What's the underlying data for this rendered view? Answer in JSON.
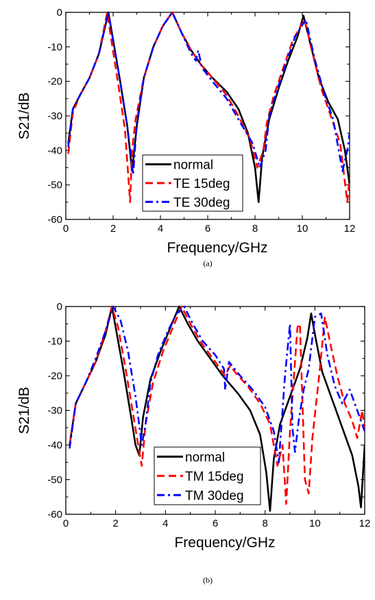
{
  "chart_data": [
    {
      "type": "line",
      "caption": "(a)",
      "xlabel": "Frequency/GHz",
      "ylabel": "S21/dB",
      "xlim": [
        0,
        12
      ],
      "ylim": [
        -60,
        0
      ],
      "xticks": [
        0,
        2,
        4,
        6,
        8,
        10,
        12
      ],
      "yticks": [
        0,
        -10,
        -20,
        -30,
        -40,
        -50,
        -60
      ],
      "grid": false,
      "legend_position": "bottom-center",
      "series": [
        {
          "name": "normal",
          "color": "#000000",
          "style": "solid",
          "x": [
            0.1,
            0.3,
            0.6,
            1.0,
            1.4,
            1.8,
            2.0,
            2.3,
            2.6,
            2.8,
            3.0,
            3.3,
            3.7,
            4.1,
            4.5,
            4.9,
            5.3,
            5.7,
            6.2,
            6.8,
            7.3,
            7.7,
            8.0,
            8.15,
            8.3,
            8.6,
            9.0,
            9.4,
            9.8,
            10.05,
            10.3,
            10.7,
            11.1,
            11.5,
            11.8,
            12.0
          ],
          "y": [
            -38,
            -28,
            -24,
            -19,
            -12,
            0,
            -8,
            -20,
            -33,
            -46,
            -33,
            -19,
            -10,
            -4,
            0,
            -6,
            -11,
            -15,
            -19,
            -23,
            -28,
            -35,
            -45,
            -55,
            -42,
            -31,
            -22,
            -14,
            -7,
            -1,
            -8,
            -19,
            -26,
            -31,
            -40,
            -50
          ]
        },
        {
          "name": "TE 15deg",
          "color": "#ff0000",
          "style": "dash",
          "x": [
            0.1,
            0.3,
            0.6,
            1.0,
            1.4,
            1.75,
            1.9,
            2.2,
            2.5,
            2.72,
            2.8,
            2.95,
            3.3,
            3.7,
            4.1,
            4.5,
            4.9,
            5.3,
            5.7,
            6.2,
            6.8,
            7.3,
            7.8,
            8.1,
            8.35,
            8.5,
            8.8,
            9.2,
            9.6,
            10.1,
            10.4,
            10.8,
            11.2,
            11.6,
            11.9,
            12.0
          ],
          "y": [
            -41,
            -29,
            -24,
            -19,
            -12,
            0,
            -7,
            -20,
            -34,
            -55,
            -40,
            -31,
            -19,
            -10,
            -4,
            0,
            -6,
            -11,
            -15,
            -19,
            -24,
            -30,
            -37,
            -45,
            -40,
            -32,
            -24,
            -16,
            -8,
            -2,
            -11,
            -22,
            -30,
            -38,
            -55,
            -48
          ]
        },
        {
          "name": "TE 30deg",
          "color": "#0000ff",
          "style": "dashdot",
          "x": [
            0.1,
            0.3,
            0.6,
            1.0,
            1.4,
            1.8,
            2.0,
            2.3,
            2.6,
            2.85,
            3.0,
            3.3,
            3.7,
            4.1,
            4.5,
            4.9,
            5.3,
            5.5,
            5.6,
            5.75,
            6.2,
            6.8,
            7.3,
            7.9,
            8.2,
            8.45,
            8.6,
            8.9,
            9.3,
            9.7,
            10.15,
            10.5,
            10.9,
            11.3,
            11.7,
            11.9,
            12.0
          ],
          "y": [
            -39,
            -28,
            -24,
            -19,
            -12,
            0,
            -8,
            -20,
            -33,
            -47,
            -32,
            -19,
            -10,
            -4,
            0,
            -6,
            -12,
            -14,
            -11,
            -16,
            -20,
            -25,
            -31,
            -38,
            -45,
            -40,
            -30,
            -23,
            -15,
            -7,
            -2,
            -13,
            -23,
            -31,
            -46,
            -40,
            -35
          ]
        }
      ]
    },
    {
      "type": "line",
      "caption": "(b)",
      "xlabel": "Frequency/GHz",
      "ylabel": "S21/dB",
      "xlim": [
        0,
        12
      ],
      "ylim": [
        -60,
        0
      ],
      "xticks": [
        0,
        2,
        4,
        6,
        8,
        10,
        12
      ],
      "yticks": [
        0,
        -10,
        -20,
        -30,
        -40,
        -50,
        -60
      ],
      "grid": false,
      "legend_position": "bottom-center",
      "series": [
        {
          "name": "normal",
          "color": "#000000",
          "style": "solid",
          "x": [
            0.15,
            0.4,
            0.8,
            1.2,
            1.6,
            1.85,
            2.0,
            2.3,
            2.6,
            2.8,
            2.95,
            3.1,
            3.4,
            3.8,
            4.2,
            4.55,
            4.9,
            5.3,
            5.8,
            6.3,
            6.9,
            7.4,
            7.8,
            8.05,
            8.2,
            8.35,
            8.6,
            9.0,
            9.4,
            9.7,
            9.85,
            10.0,
            10.3,
            10.7,
            11.1,
            11.5,
            11.75,
            11.85,
            12.0
          ],
          "y": [
            -40,
            -28,
            -22,
            -16,
            -8,
            0,
            -6,
            -18,
            -31,
            -40,
            -43,
            -32,
            -21,
            -13,
            -6,
            0,
            -5,
            -10,
            -15,
            -20,
            -25,
            -30,
            -37,
            -48,
            -59,
            -44,
            -34,
            -26,
            -18,
            -9,
            -2,
            -8,
            -19,
            -27,
            -35,
            -43,
            -52,
            -58,
            -40
          ]
        },
        {
          "name": "TM 15deg",
          "color": "#ff0000",
          "style": "dash",
          "x": [
            0.15,
            0.4,
            0.8,
            1.2,
            1.6,
            1.85,
            2.1,
            2.4,
            2.7,
            2.95,
            3.05,
            3.2,
            3.5,
            3.9,
            4.3,
            4.65,
            5.0,
            5.4,
            5.9,
            6.4,
            6.6,
            6.8,
            7.3,
            7.8,
            8.2,
            8.5,
            8.7,
            8.85,
            9.0,
            9.3,
            9.4,
            9.6,
            9.75,
            9.9,
            10.2,
            10.4,
            10.6,
            10.9,
            11.2,
            11.5,
            11.7,
            11.9,
            12.0
          ],
          "y": [
            -40,
            -28,
            -22,
            -16,
            -7,
            0,
            -6,
            -18,
            -31,
            -42,
            -46,
            -34,
            -22,
            -13,
            -6,
            0,
            -5,
            -10,
            -15,
            -20,
            -17,
            -19,
            -23,
            -28,
            -34,
            -46,
            -40,
            -57,
            -36,
            -6,
            -5,
            -50,
            -54,
            -38,
            -18,
            -3,
            -10,
            -20,
            -28,
            -33,
            -38,
            -30,
            -36
          ]
        },
        {
          "name": "TM 30deg",
          "color": "#0000ff",
          "style": "dashdot",
          "x": [
            0.15,
            0.4,
            0.8,
            1.2,
            1.6,
            1.9,
            2.2,
            2.5,
            2.8,
            3.05,
            3.2,
            3.4,
            3.7,
            4.1,
            4.45,
            4.75,
            5.1,
            5.5,
            6.0,
            6.35,
            6.4,
            6.55,
            7.0,
            7.5,
            8.0,
            8.35,
            8.55,
            8.7,
            8.8,
            9.0,
            9.1,
            9.2,
            9.35,
            9.55,
            9.75,
            10.0,
            10.25,
            10.5,
            10.8,
            11.1,
            11.4,
            11.7,
            12.0
          ],
          "y": [
            -41,
            -28,
            -22,
            -15,
            -7,
            0,
            -4,
            -13,
            -26,
            -40,
            -34,
            -22,
            -14,
            -7,
            -2,
            0,
            -5,
            -10,
            -14,
            -18,
            -24,
            -16,
            -20,
            -24,
            -29,
            -36,
            -45,
            -30,
            -20,
            -5,
            -35,
            -42,
            -33,
            -24,
            -18,
            -3,
            -2,
            -14,
            -23,
            -28,
            -24,
            -30,
            -36
          ]
        }
      ]
    }
  ]
}
